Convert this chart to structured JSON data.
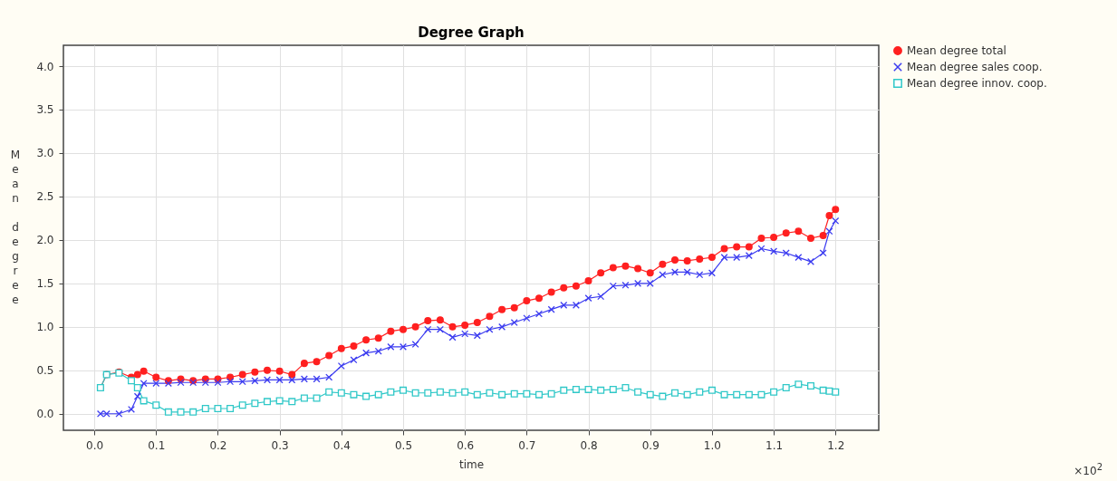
{
  "chart_data": {
    "type": "line",
    "title": "Degree Graph",
    "xlabel": "time",
    "ylabel": "Mean degree",
    "annotations": [
      "×10$^{2}$"
    ],
    "x": [
      0.01,
      0.02,
      0.04,
      0.06,
      0.07,
      0.08,
      0.1,
      0.12,
      0.14,
      0.16,
      0.18,
      0.2,
      0.22,
      0.24,
      0.26,
      0.28,
      0.3,
      0.32,
      0.34,
      0.36,
      0.38,
      0.4,
      0.42,
      0.44,
      0.46,
      0.48,
      0.5,
      0.52,
      0.54,
      0.56,
      0.58,
      0.6,
      0.62,
      0.64,
      0.66,
      0.68,
      0.7,
      0.72,
      0.74,
      0.76,
      0.78,
      0.8,
      0.82,
      0.84,
      0.86,
      0.88,
      0.9,
      0.92,
      0.94,
      0.96,
      0.98,
      1.0,
      1.02,
      1.04,
      1.06,
      1.08,
      1.1,
      1.12,
      1.14,
      1.16,
      1.18,
      1.19,
      1.2
    ],
    "series": [
      {
        "name": "Mean degree total",
        "color": "#ff2020",
        "marker": "circle",
        "values": [
          0.3,
          0.45,
          0.48,
          0.42,
          0.45,
          0.49,
          0.42,
          0.38,
          0.4,
          0.38,
          0.4,
          0.4,
          0.42,
          0.45,
          0.48,
          0.5,
          0.49,
          0.45,
          0.58,
          0.6,
          0.67,
          0.75,
          0.78,
          0.85,
          0.87,
          0.95,
          0.97,
          1.0,
          1.07,
          1.08,
          1.0,
          1.02,
          1.05,
          1.12,
          1.2,
          1.22,
          1.3,
          1.33,
          1.4,
          1.45,
          1.47,
          1.53,
          1.62,
          1.68,
          1.7,
          1.67,
          1.62,
          1.72,
          1.77,
          1.76,
          1.78,
          1.8,
          1.9,
          1.92,
          1.92,
          2.02,
          2.03,
          2.08,
          2.1,
          2.02,
          2.05,
          2.28,
          2.35
        ]
      },
      {
        "name": "Mean degree sales coop.",
        "color": "#3b3bf0",
        "marker": "cross",
        "values": [
          0,
          0,
          0,
          0.05,
          0.2,
          0.35,
          0.35,
          0.35,
          0.36,
          0.36,
          0.36,
          0.36,
          0.37,
          0.37,
          0.38,
          0.39,
          0.39,
          0.39,
          0.4,
          0.4,
          0.42,
          0.55,
          0.62,
          0.7,
          0.72,
          0.77,
          0.77,
          0.8,
          0.97,
          0.97,
          0.88,
          0.92,
          0.9,
          0.97,
          1.0,
          1.05,
          1.1,
          1.15,
          1.2,
          1.25,
          1.25,
          1.33,
          1.35,
          1.47,
          1.48,
          1.5,
          1.5,
          1.6,
          1.63,
          1.63,
          1.6,
          1.62,
          1.8,
          1.8,
          1.82,
          1.9,
          1.87,
          1.85,
          1.8,
          1.75,
          1.85,
          2.1,
          2.22
        ]
      },
      {
        "name": "Mean degree innov. coop.",
        "color": "#30c8c8",
        "marker": "square",
        "values": [
          0.3,
          0.45,
          0.47,
          0.38,
          0.3,
          0.15,
          0.1,
          0.02,
          0.02,
          0.02,
          0.06,
          0.06,
          0.06,
          0.1,
          0.12,
          0.14,
          0.15,
          0.14,
          0.18,
          0.18,
          0.25,
          0.24,
          0.22,
          0.2,
          0.22,
          0.25,
          0.27,
          0.24,
          0.24,
          0.25,
          0.24,
          0.25,
          0.22,
          0.24,
          0.22,
          0.23,
          0.23,
          0.22,
          0.23,
          0.27,
          0.28,
          0.28,
          0.27,
          0.28,
          0.3,
          0.25,
          0.22,
          0.2,
          0.24,
          0.22,
          0.25,
          0.27,
          0.22,
          0.22,
          0.22,
          0.22,
          0.25,
          0.3,
          0.34,
          0.32,
          0.27,
          0.26,
          0.25
        ]
      }
    ],
    "xlim": [
      -0.05,
      1.27
    ],
    "ylim": [
      -0.19,
      4.24
    ],
    "xticks": [
      {
        "value": 0,
        "label": "0.0"
      },
      0.1,
      0.2,
      0.3,
      0.4,
      0.5,
      0.6,
      0.7,
      0.8,
      0.9,
      {
        "value": 1,
        "label": "1.0"
      },
      1.1,
      1.2
    ],
    "yticks": [
      {
        "value": 0,
        "label": "0.0"
      },
      0.5,
      {
        "value": 1,
        "label": "1.0"
      },
      1.5,
      {
        "value": 2,
        "label": "2.0"
      },
      2.5,
      {
        "value": 3,
        "label": "3.0"
      },
      3.5,
      {
        "value": 4,
        "label": "4.0"
      }
    ],
    "grid": true,
    "legend": "top right",
    "line_style": "solid"
  }
}
